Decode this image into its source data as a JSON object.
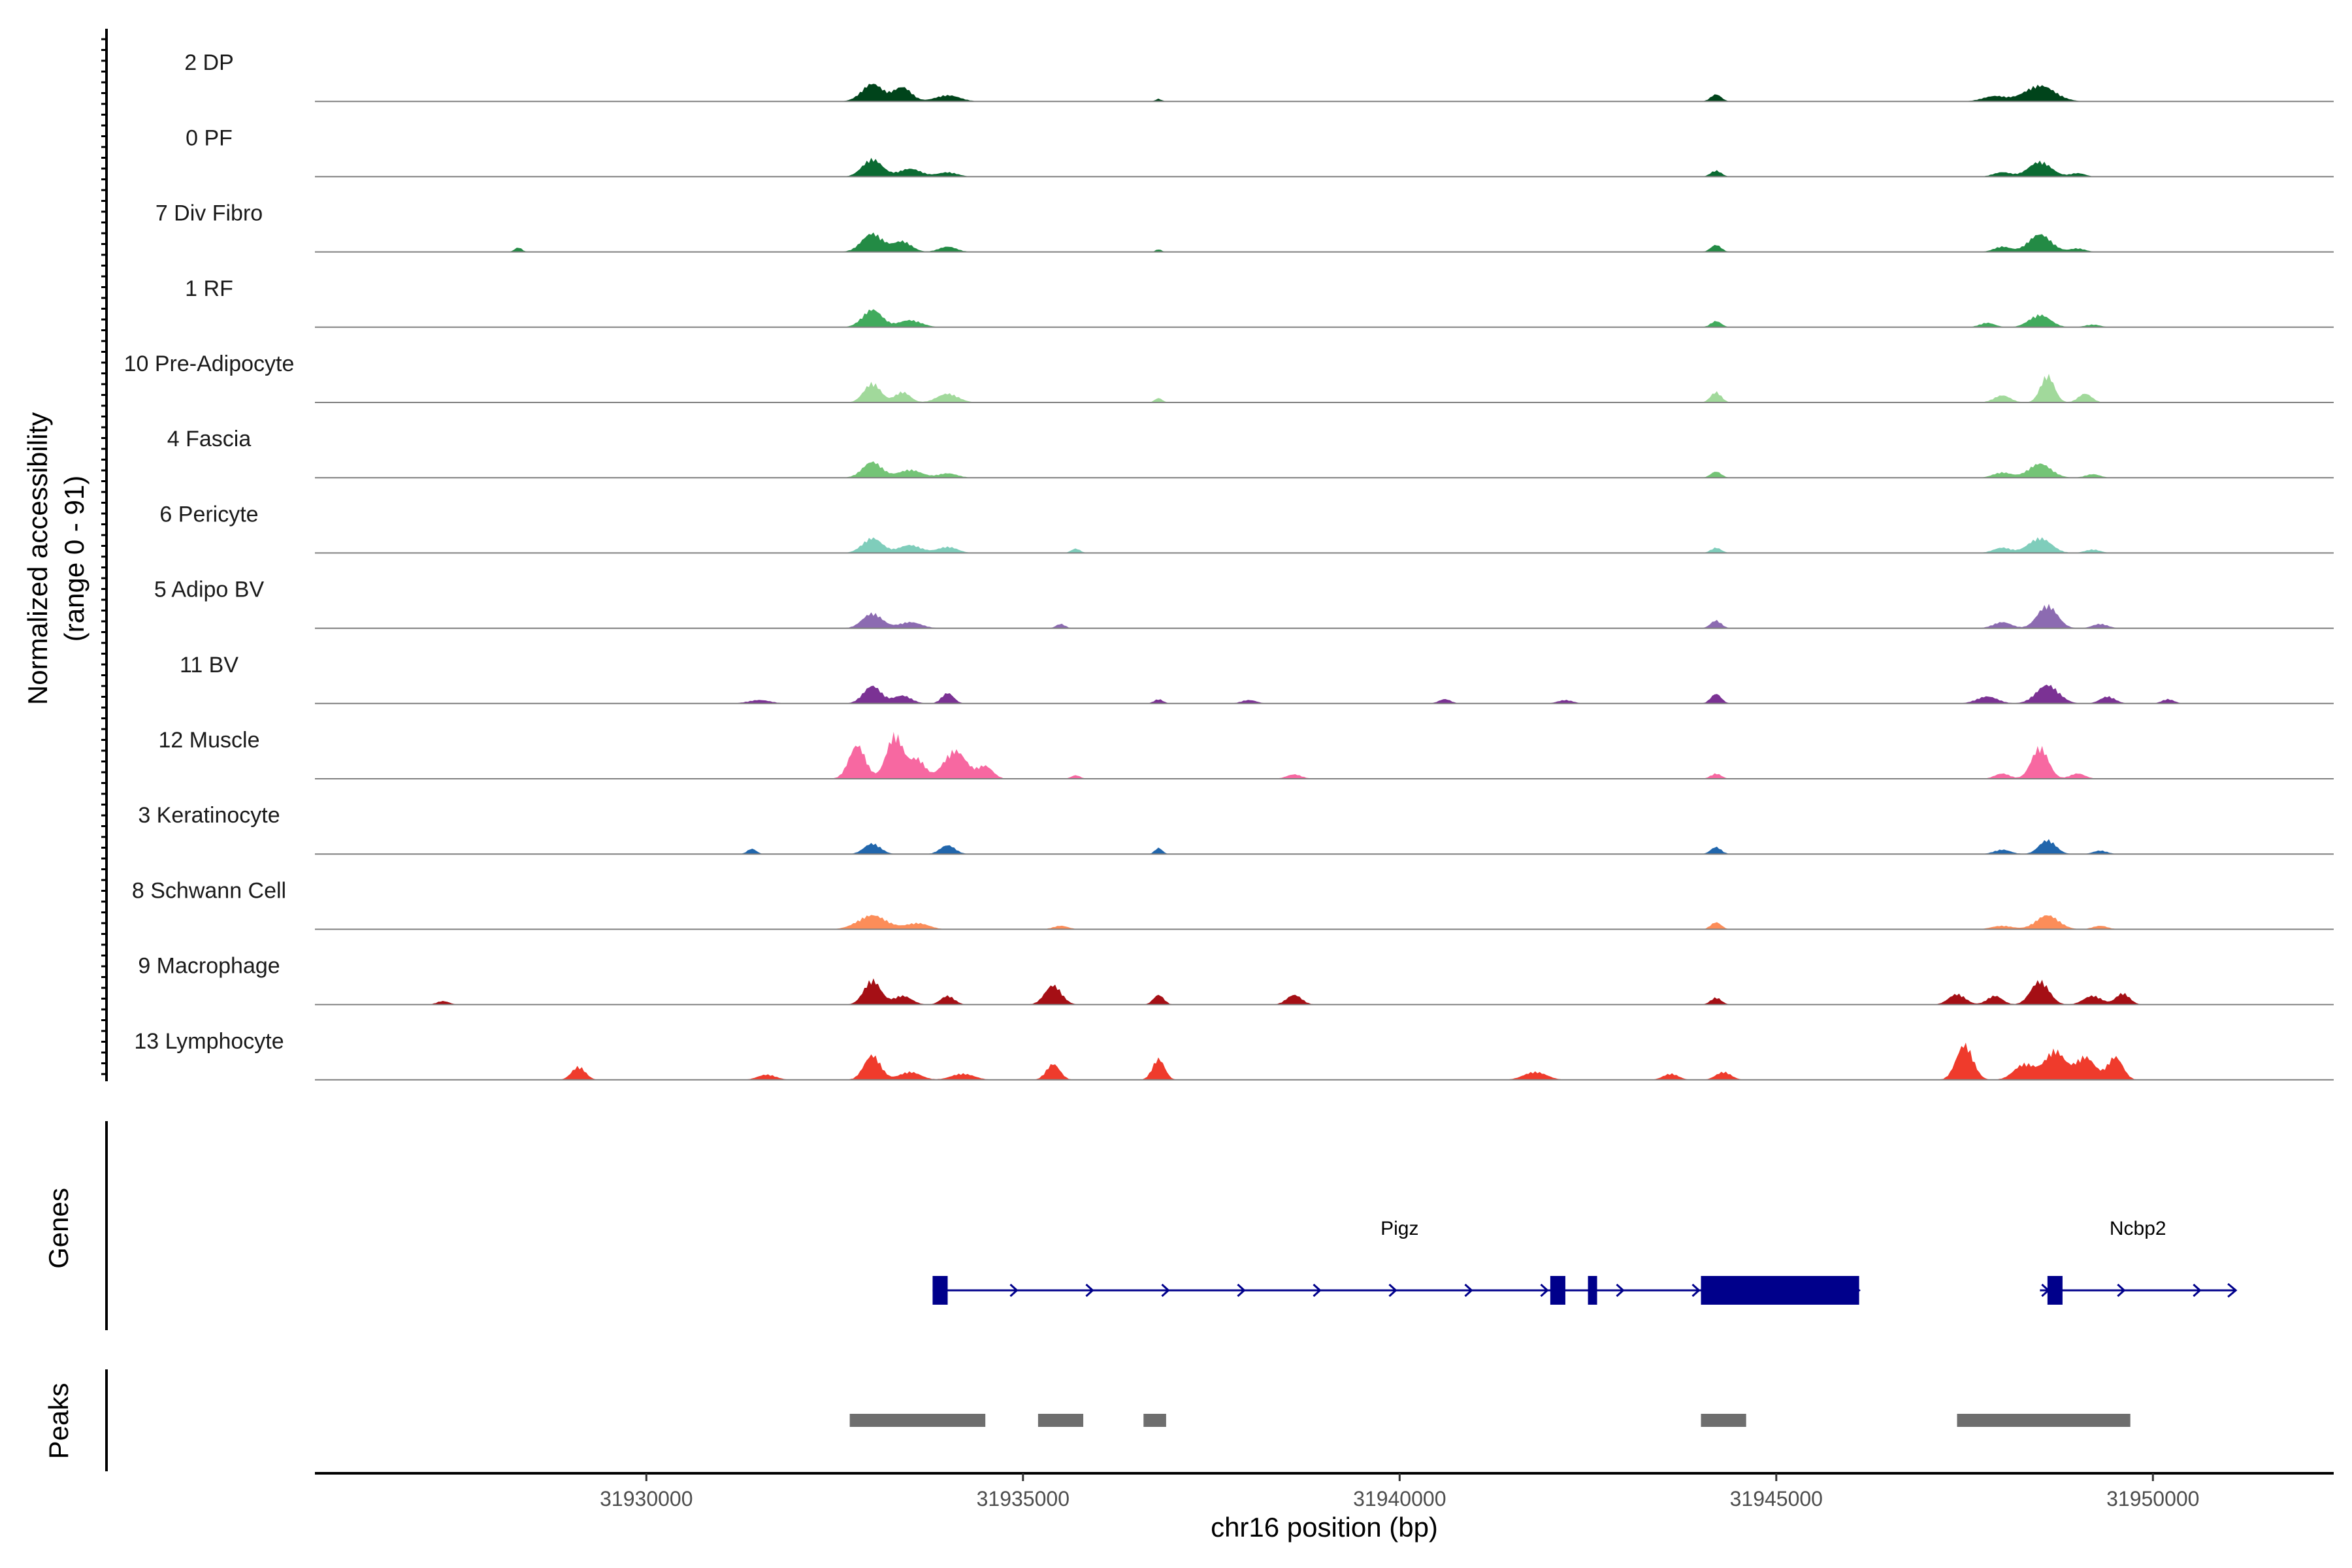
{
  "chart_data": {
    "type": "area",
    "title": "",
    "chromosome": "chr16",
    "xlabel": "chr16 position (bp)",
    "ylabel_line1": "Normalized accessibility",
    "ylabel_line2": "(range 0 - 91)",
    "y_range": [
      0,
      91
    ],
    "xlim": [
      31925600,
      31952400
    ],
    "x_ticks": [
      31930000,
      31935000,
      31940000,
      31945000,
      31950000
    ],
    "x_tick_labels": [
      "31930000",
      "31935000",
      "31940000",
      "31945000",
      "31950000"
    ],
    "tracks": [
      {
        "name": "2 DP",
        "color": "#00441b",
        "peaks": [
          [
            31933000,
            20,
            140
          ],
          [
            31933400,
            16,
            120
          ],
          [
            31934000,
            7,
            160
          ],
          [
            31936800,
            3,
            40
          ],
          [
            31944200,
            8,
            70
          ],
          [
            31948500,
            18,
            200
          ],
          [
            31947900,
            6,
            160
          ]
        ]
      },
      {
        "name": "0 PF",
        "color": "#0b6b32",
        "peaks": [
          [
            31933000,
            20,
            130
          ],
          [
            31933500,
            9,
            150
          ],
          [
            31934000,
            5,
            130
          ],
          [
            31944200,
            7,
            70
          ],
          [
            31948000,
            5,
            120
          ],
          [
            31948500,
            17,
            150
          ],
          [
            31949000,
            4,
            100
          ]
        ]
      },
      {
        "name": "7 Div Fibro",
        "color": "#238b45",
        "peaks": [
          [
            31928300,
            5,
            50
          ],
          [
            31933000,
            21,
            140
          ],
          [
            31933400,
            12,
            120
          ],
          [
            31934000,
            6,
            120
          ],
          [
            31936800,
            3,
            40
          ],
          [
            31944200,
            8,
            70
          ],
          [
            31948000,
            6,
            110
          ],
          [
            31948500,
            20,
            150
          ],
          [
            31949000,
            4,
            100
          ]
        ]
      },
      {
        "name": "1 RF",
        "color": "#41ab5d",
        "peaks": [
          [
            31933000,
            20,
            130
          ],
          [
            31933500,
            8,
            150
          ],
          [
            31944200,
            7,
            70
          ],
          [
            31947800,
            5,
            100
          ],
          [
            31948500,
            14,
            140
          ],
          [
            31949200,
            3,
            100
          ]
        ]
      },
      {
        "name": "10 Pre-Adipocyte",
        "color": "#a1d99b",
        "peaks": [
          [
            31933000,
            22,
            110
          ],
          [
            31933400,
            12,
            100
          ],
          [
            31934000,
            10,
            140
          ],
          [
            31936800,
            5,
            50
          ],
          [
            31944200,
            12,
            70
          ],
          [
            31948000,
            8,
            110
          ],
          [
            31948600,
            31,
            90
          ],
          [
            31949100,
            10,
            90
          ]
        ]
      },
      {
        "name": "4 Fascia",
        "color": "#74c476",
        "peaks": [
          [
            31933000,
            18,
            130
          ],
          [
            31933500,
            9,
            150
          ],
          [
            31934000,
            5,
            130
          ],
          [
            31944200,
            7,
            70
          ],
          [
            31948000,
            6,
            120
          ],
          [
            31948500,
            16,
            150
          ],
          [
            31949200,
            4,
            100
          ]
        ]
      },
      {
        "name": "6 Pericyte",
        "color": "#7fcdbb",
        "peaks": [
          [
            31933000,
            17,
            130
          ],
          [
            31933500,
            9,
            150
          ],
          [
            31934000,
            7,
            130
          ],
          [
            31935700,
            5,
            60
          ],
          [
            31944200,
            6,
            70
          ],
          [
            31948000,
            6,
            120
          ],
          [
            31948500,
            17,
            150
          ],
          [
            31949200,
            4,
            100
          ]
        ]
      },
      {
        "name": "5 Adipo BV",
        "color": "#8c6bb1",
        "peaks": [
          [
            31933000,
            17,
            130
          ],
          [
            31933500,
            7,
            150
          ],
          [
            31935500,
            5,
            60
          ],
          [
            31944200,
            9,
            70
          ],
          [
            31948000,
            7,
            120
          ],
          [
            31948600,
            26,
            130
          ],
          [
            31949300,
            5,
            100
          ]
        ]
      },
      {
        "name": "11 BV",
        "color": "#7b3294",
        "peaks": [
          [
            31931500,
            4,
            150
          ],
          [
            31933000,
            20,
            120
          ],
          [
            31933400,
            9,
            120
          ],
          [
            31934000,
            12,
            80
          ],
          [
            31936800,
            5,
            60
          ],
          [
            31938000,
            4,
            100
          ],
          [
            31940600,
            5,
            80
          ],
          [
            31942200,
            4,
            100
          ],
          [
            31944200,
            11,
            70
          ],
          [
            31947800,
            8,
            140
          ],
          [
            31948600,
            21,
            150
          ],
          [
            31949400,
            8,
            100
          ],
          [
            31950200,
            5,
            80
          ]
        ]
      },
      {
        "name": "12 Muscle",
        "color": "#f768a1",
        "peaks": [
          [
            31932800,
            38,
            110
          ],
          [
            31933300,
            50,
            110
          ],
          [
            31933600,
            22,
            100
          ],
          [
            31934100,
            32,
            150
          ],
          [
            31934500,
            14,
            100
          ],
          [
            31935700,
            4,
            60
          ],
          [
            31938600,
            5,
            100
          ],
          [
            31944200,
            6,
            70
          ],
          [
            31948000,
            6,
            100
          ],
          [
            31948500,
            36,
            110
          ],
          [
            31949000,
            6,
            100
          ]
        ]
      },
      {
        "name": "3 Keratinocyte",
        "color": "#2166ac",
        "peaks": [
          [
            31931400,
            6,
            60
          ],
          [
            31933000,
            12,
            110
          ],
          [
            31934000,
            10,
            100
          ],
          [
            31936800,
            7,
            50
          ],
          [
            31944200,
            8,
            70
          ],
          [
            31948000,
            5,
            110
          ],
          [
            31948600,
            16,
            110
          ],
          [
            31949300,
            4,
            90
          ]
        ]
      },
      {
        "name": "8 Schwann Cell",
        "color": "#fc8d59",
        "peaks": [
          [
            31933000,
            16,
            190
          ],
          [
            31933600,
            7,
            150
          ],
          [
            31935500,
            4,
            100
          ],
          [
            31944200,
            8,
            70
          ],
          [
            31948000,
            4,
            140
          ],
          [
            31948600,
            16,
            150
          ],
          [
            31949300,
            4,
            100
          ]
        ]
      },
      {
        "name": "9 Macrophage",
        "color": "#a50f15",
        "peaks": [
          [
            31927300,
            4,
            80
          ],
          [
            31933000,
            28,
            110
          ],
          [
            31933400,
            10,
            120
          ],
          [
            31934000,
            10,
            90
          ],
          [
            31935400,
            22,
            110
          ],
          [
            31936800,
            11,
            70
          ],
          [
            31938600,
            11,
            100
          ],
          [
            31944200,
            8,
            70
          ],
          [
            31947400,
            12,
            110
          ],
          [
            31947900,
            10,
            100
          ],
          [
            31948500,
            27,
            120
          ],
          [
            31949200,
            10,
            120
          ],
          [
            31949600,
            13,
            90
          ]
        ]
      },
      {
        "name": "13 Lymphocyte",
        "color": "#ef3b2c",
        "peaks": [
          [
            31929100,
            15,
            90
          ],
          [
            31931600,
            6,
            120
          ],
          [
            31933000,
            28,
            110
          ],
          [
            31933500,
            9,
            140
          ],
          [
            31934200,
            7,
            150
          ],
          [
            31935400,
            18,
            90
          ],
          [
            31936800,
            24,
            80
          ],
          [
            31941800,
            9,
            150
          ],
          [
            31943600,
            7,
            100
          ],
          [
            31944300,
            9,
            100
          ],
          [
            31947500,
            40,
            110
          ],
          [
            31948300,
            18,
            140
          ],
          [
            31948700,
            33,
            130
          ],
          [
            31949100,
            26,
            130
          ],
          [
            31949500,
            26,
            100
          ]
        ]
      }
    ],
    "genes": [
      {
        "name": "Pigz",
        "strand": "+",
        "start": 31933800,
        "end": 31946100,
        "exons": [
          [
            31933800,
            31934000
          ],
          [
            31942000,
            31942200
          ],
          [
            31942500,
            31942600
          ],
          [
            31944000,
            31946100
          ]
        ],
        "color": "#00008b"
      },
      {
        "name": "Ncbp2",
        "strand": "+",
        "start": 31948500,
        "end": 31951100,
        "exons": [
          [
            31948600,
            31948800
          ]
        ],
        "color": "#00008b"
      }
    ],
    "peak_regions": [
      [
        31932700,
        31934500
      ],
      [
        31935200,
        31935800
      ],
      [
        31936600,
        31936900
      ],
      [
        31944000,
        31944600
      ],
      [
        31947400,
        31949700
      ]
    ],
    "panels": {
      "genes_label": "Genes",
      "peaks_label": "Peaks"
    }
  }
}
